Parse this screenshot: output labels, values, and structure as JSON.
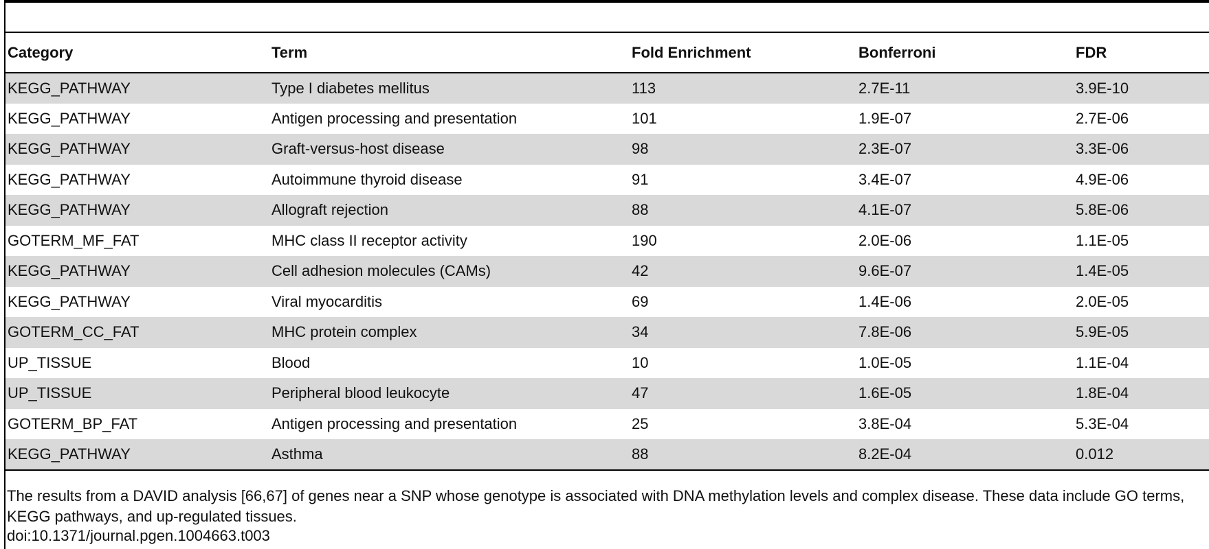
{
  "table": {
    "headers": [
      "Category",
      "Term",
      "Fold Enrichment",
      "Bonferroni",
      "FDR"
    ],
    "rows": [
      [
        "KEGG_PATHWAY",
        "Type I diabetes mellitus",
        "113",
        "2.7E-11",
        "3.9E-10"
      ],
      [
        "KEGG_PATHWAY",
        "Antigen processing and presentation",
        "101",
        "1.9E-07",
        "2.7E-06"
      ],
      [
        "KEGG_PATHWAY",
        "Graft-versus-host disease",
        "98",
        "2.3E-07",
        "3.3E-06"
      ],
      [
        "KEGG_PATHWAY",
        "Autoimmune thyroid disease",
        "91",
        "3.4E-07",
        "4.9E-06"
      ],
      [
        "KEGG_PATHWAY",
        "Allograft rejection",
        "88",
        "4.1E-07",
        "5.8E-06"
      ],
      [
        "GOTERM_MF_FAT",
        "MHC class II receptor activity",
        "190",
        "2.0E-06",
        "1.1E-05"
      ],
      [
        "KEGG_PATHWAY",
        "Cell adhesion molecules (CAMs)",
        "42",
        "9.6E-07",
        "1.4E-05"
      ],
      [
        "KEGG_PATHWAY",
        "Viral myocarditis",
        "69",
        "1.4E-06",
        "2.0E-05"
      ],
      [
        "GOTERM_CC_FAT",
        "MHC protein complex",
        "34",
        "7.8E-06",
        "5.9E-05"
      ],
      [
        "UP_TISSUE",
        "Blood",
        "10",
        "1.0E-05",
        "1.1E-04"
      ],
      [
        "UP_TISSUE",
        "Peripheral blood leukocyte",
        "47",
        "1.6E-05",
        "1.8E-04"
      ],
      [
        "GOTERM_BP_FAT",
        "Antigen processing and presentation",
        "25",
        "3.8E-04",
        "5.3E-04"
      ],
      [
        "KEGG_PATHWAY",
        "Asthma",
        "88",
        "8.2E-04",
        "0.012"
      ]
    ]
  },
  "caption": "The results from a DAVID analysis [66,67] of genes near a SNP whose genotype is associated with DNA methylation levels and complex disease. These data include GO terms, KEGG pathways, and up-regulated tissues.",
  "doi": "doi:10.1371/journal.pgen.1004663.t003",
  "colors": {
    "row_shade": "#d9d9d9",
    "rule": "#000000"
  }
}
